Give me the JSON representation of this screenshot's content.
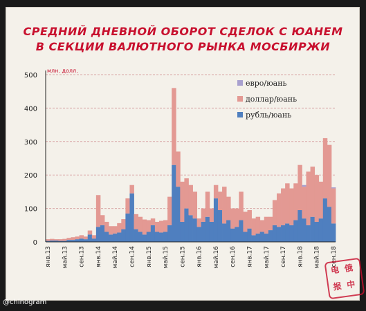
{
  "title_line1": "СРЕДНИЙ ДНЕВНОЙ ОБОРОТ СДЕЛОК С ЮАНЕМ",
  "title_line2": "В СЕКЦИИ ВАЛЮТНОГО РЫНКА МОСБИРЖИ",
  "credit": "@chinogram",
  "stamp_chars": [
    "电",
    "俄",
    "报",
    "中"
  ],
  "chart_data": {
    "type": "bar",
    "stacked": true,
    "unit_label": "млн. долл.",
    "ylim": [
      0,
      500
    ],
    "yticks": [
      0,
      100,
      200,
      300,
      400,
      500
    ],
    "grid": true,
    "legend_position": "top-right",
    "x_tick_labels": [
      {
        "index": 0,
        "label": "янв.13"
      },
      {
        "index": 4,
        "label": "май.13"
      },
      {
        "index": 8,
        "label": "сен.13"
      },
      {
        "index": 12,
        "label": "янв.14"
      },
      {
        "index": 16,
        "label": "май.14"
      },
      {
        "index": 20,
        "label": "сен.14"
      },
      {
        "index": 24,
        "label": "янв.15"
      },
      {
        "index": 28,
        "label": "май.15"
      },
      {
        "index": 32,
        "label": "сен.15"
      },
      {
        "index": 36,
        "label": "янв.16"
      },
      {
        "index": 40,
        "label": "май.16"
      },
      {
        "index": 44,
        "label": "сен.16"
      },
      {
        "index": 48,
        "label": "янв.17"
      },
      {
        "index": 52,
        "label": "май.17"
      },
      {
        "index": 56,
        "label": "сен.17"
      },
      {
        "index": 60,
        "label": "янв.18"
      },
      {
        "index": 64,
        "label": "май.18"
      },
      {
        "index": 68,
        "label": "сен.18"
      }
    ],
    "series": [
      {
        "name": "рубль/юань",
        "color": "#4f7fbf",
        "values": [
          3,
          4,
          4,
          3,
          3,
          6,
          6,
          8,
          10,
          8,
          22,
          10,
          45,
          50,
          30,
          22,
          25,
          28,
          38,
          85,
          145,
          38,
          30,
          22,
          30,
          50,
          30,
          28,
          30,
          50,
          230,
          165,
          60,
          100,
          80,
          70,
          45,
          60,
          75,
          60,
          130,
          95,
          55,
          65,
          40,
          45,
          65,
          30,
          40,
          20,
          25,
          30,
          25,
          35,
          50,
          45,
          50,
          55,
          50,
          65,
          95,
          70,
          50,
          75,
          60,
          70,
          130,
          105,
          55
        ]
      },
      {
        "name": "доллар/юань",
        "color": "#e39993",
        "values": [
          5,
          5,
          4,
          5,
          6,
          6,
          8,
          8,
          10,
          8,
          12,
          10,
          95,
          30,
          30,
          25,
          22,
          28,
          30,
          45,
          25,
          45,
          45,
          45,
          35,
          20,
          30,
          35,
          35,
          85,
          230,
          105,
          120,
          90,
          90,
          80,
          25,
          40,
          75,
          40,
          40,
          55,
          110,
          70,
          60,
          55,
          85,
          60,
          55,
          50,
          50,
          35,
          50,
          40,
          75,
          100,
          110,
          120,
          110,
          110,
          135,
          95,
          160,
          150,
          140,
          110,
          180,
          185,
          105
        ]
      },
      {
        "name": "евро/юань",
        "color": "#a8a0cf",
        "values": [
          0,
          0,
          0,
          0,
          0,
          0,
          0,
          0,
          0,
          0,
          0,
          0,
          0,
          0,
          0,
          0,
          0,
          0,
          0,
          0,
          0,
          0,
          0,
          0,
          0,
          0,
          0,
          0,
          0,
          0,
          0,
          0,
          0,
          0,
          0,
          0,
          0,
          0,
          0,
          0,
          0,
          0,
          0,
          0,
          0,
          0,
          0,
          0,
          0,
          0,
          0,
          0,
          0,
          0,
          0,
          0,
          0,
          0,
          0,
          0,
          0,
          5,
          0,
          0,
          0,
          0,
          0,
          0,
          3
        ]
      }
    ],
    "legend_order": [
      "евро/юань",
      "доллар/юань",
      "рубль/юань"
    ]
  }
}
